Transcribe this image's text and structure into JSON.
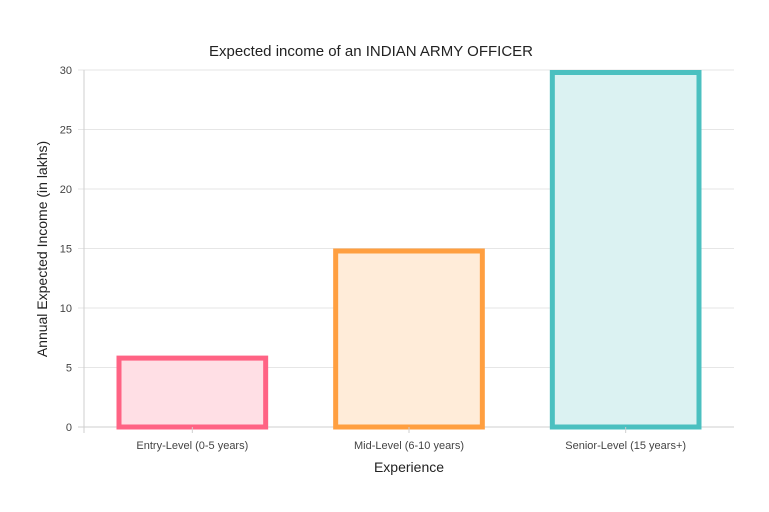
{
  "chart_data": {
    "type": "bar",
    "title": "Expected income of an INDIAN ARMY OFFICER",
    "xlabel": "Experience",
    "ylabel": "Annual Expected Income (in lakhs)",
    "categories": [
      "Entry-Level (0-5 years)",
      "Mid-Level (6-10 years)",
      "Senior-Level (15 years+)"
    ],
    "values": [
      6,
      15,
      30
    ],
    "ylim": [
      0,
      30
    ],
    "yticks": [
      "0",
      "5",
      "10",
      "15",
      "20",
      "25",
      "30"
    ],
    "grid": true,
    "legend": "none",
    "colors": {
      "border": [
        "#ff6384",
        "#ff9f40",
        "#4bc0c0"
      ],
      "fill": [
        "#ffdfe5",
        "#ffecd9",
        "#dbf2f2"
      ]
    }
  }
}
